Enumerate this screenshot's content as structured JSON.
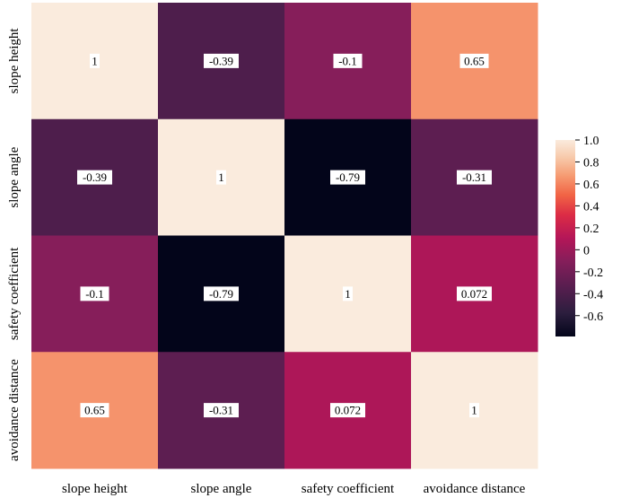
{
  "chart_data": {
    "type": "heatmap",
    "title": "",
    "row_labels": [
      "slope height",
      "slope angle",
      "safety coefficient",
      "avoidance distance"
    ],
    "col_labels": [
      "slope height",
      "slope angle",
      "safety coefficient",
      "avoidance distance"
    ],
    "values": [
      [
        1,
        -0.39,
        -0.1,
        0.65
      ],
      [
        -0.39,
        1,
        -0.79,
        -0.31
      ],
      [
        -0.1,
        -0.79,
        1,
        0.072
      ],
      [
        0.65,
        -0.31,
        0.072,
        1
      ]
    ],
    "value_labels": [
      [
        "1",
        "-0.39",
        "-0.1",
        "0.65"
      ],
      [
        "-0.39",
        "1",
        "-0.79",
        "-0.31"
      ],
      [
        "-0.1",
        "-0.79",
        "1",
        "0.072"
      ],
      [
        "0.65",
        "-0.31",
        "0.072",
        "1"
      ]
    ],
    "colorbar": {
      "range": [
        -0.79,
        1.0
      ],
      "ticks": [
        1.0,
        0.8,
        0.6,
        0.4,
        0.2,
        0,
        -0.2,
        -0.4,
        -0.6
      ],
      "tick_labels": [
        "1.0",
        "0.8",
        "0.6",
        "0.4",
        "0.2",
        "0",
        "-0.2",
        "-0.4",
        "-0.6"
      ],
      "colormap": "rocket",
      "placement": "right"
    },
    "annotations": true,
    "grid": false
  }
}
